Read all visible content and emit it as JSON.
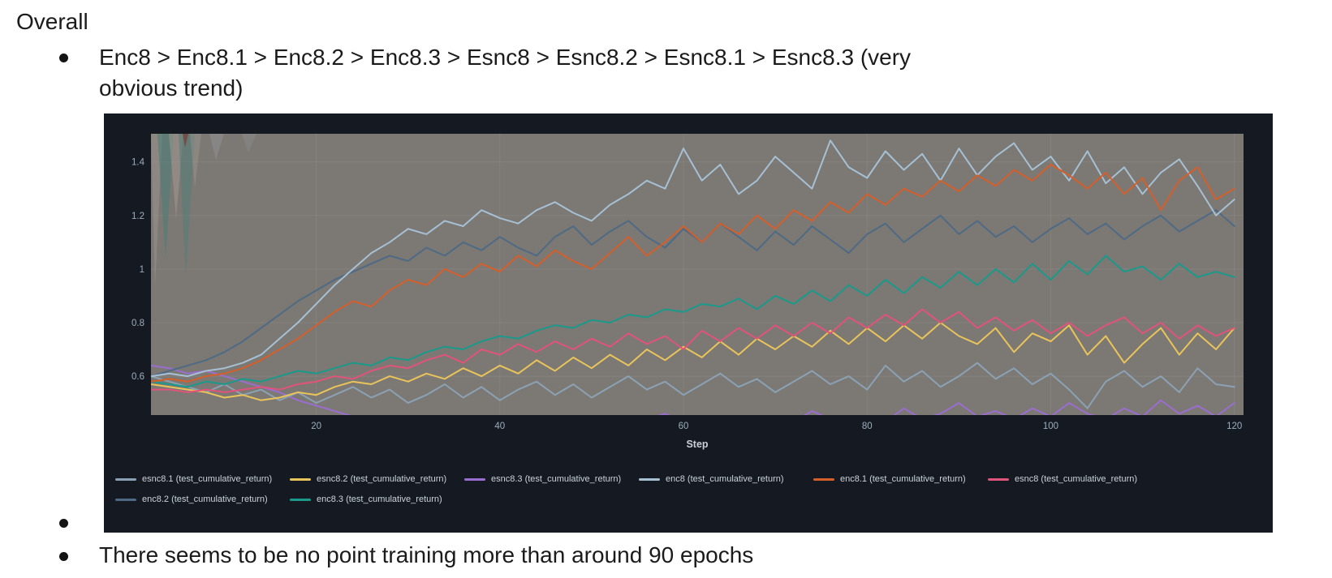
{
  "doc": {
    "title": "Overall",
    "bullet1_line1": "Enc8 > Enc8.1 > Enc8.2 > Enc8.3 > Esnc8 > Esnc8.2 > Esnc8.1 > Esnc8.3 (very",
    "bullet1_line2": "obvious trend)",
    "bullet3_text": "There seems to be no point training more than around 90 epochs"
  },
  "chart_data": {
    "type": "line",
    "xlabel": "Step",
    "x_tick_labels": [
      "20",
      "40",
      "60",
      "80",
      "100",
      "120"
    ],
    "x_tick_values": [
      20,
      40,
      60,
      80,
      100,
      120
    ],
    "y_tick_labels": [
      "0.6",
      "0.8",
      "1",
      "1.2",
      "1.4"
    ],
    "y_tick_values": [
      0.6,
      0.8,
      1.0,
      1.2,
      1.4
    ],
    "x_range": [
      2,
      121
    ],
    "y_range": [
      0.455,
      1.505
    ],
    "legend_position": "bottom",
    "grid": true,
    "colors": {
      "panel_bg": "#151a22",
      "plot_bg": "#7c7874",
      "gridline": "rgba(255,255,255,0.07)",
      "tick_text": "#9cadbb",
      "axis_label_text": "#c9cfd7",
      "legend_text": "#ccd2d9"
    },
    "x": [
      2,
      4,
      6,
      8,
      10,
      12,
      14,
      16,
      18,
      20,
      22,
      24,
      26,
      28,
      30,
      32,
      34,
      36,
      38,
      40,
      42,
      44,
      46,
      48,
      50,
      52,
      54,
      56,
      58,
      60,
      62,
      64,
      66,
      68,
      70,
      72,
      74,
      76,
      78,
      80,
      82,
      84,
      86,
      88,
      90,
      92,
      94,
      96,
      98,
      100,
      102,
      104,
      106,
      108,
      110,
      112,
      114,
      116,
      118,
      120
    ],
    "series": [
      {
        "name": "esnc8.1",
        "label": "esnc8.1 (test_cumulative_return)",
        "color": "#8ba2b4",
        "values": [
          0.6,
          0.58,
          0.56,
          0.54,
          0.57,
          0.53,
          0.55,
          0.51,
          0.54,
          0.5,
          0.53,
          0.56,
          0.52,
          0.55,
          0.5,
          0.53,
          0.57,
          0.52,
          0.56,
          0.51,
          0.55,
          0.58,
          0.53,
          0.57,
          0.52,
          0.56,
          0.6,
          0.55,
          0.58,
          0.53,
          0.57,
          0.61,
          0.56,
          0.59,
          0.54,
          0.58,
          0.62,
          0.57,
          0.6,
          0.55,
          0.64,
          0.58,
          0.62,
          0.56,
          0.6,
          0.65,
          0.59,
          0.63,
          0.57,
          0.61,
          0.55,
          0.48,
          0.58,
          0.62,
          0.56,
          0.6,
          0.54,
          0.63,
          0.57,
          0.56
        ]
      },
      {
        "name": "esnc8.2",
        "label": "esnc8.2 (test_cumulative_return)",
        "color": "#e9c45a",
        "values": [
          0.57,
          0.56,
          0.55,
          0.54,
          0.52,
          0.53,
          0.51,
          0.52,
          0.54,
          0.53,
          0.56,
          0.58,
          0.57,
          0.6,
          0.58,
          0.61,
          0.59,
          0.63,
          0.6,
          0.64,
          0.61,
          0.66,
          0.62,
          0.67,
          0.63,
          0.68,
          0.64,
          0.7,
          0.66,
          0.71,
          0.67,
          0.73,
          0.68,
          0.74,
          0.7,
          0.75,
          0.71,
          0.77,
          0.72,
          0.78,
          0.73,
          0.79,
          0.74,
          0.8,
          0.75,
          0.72,
          0.78,
          0.69,
          0.76,
          0.73,
          0.79,
          0.68,
          0.75,
          0.65,
          0.72,
          0.78,
          0.68,
          0.76,
          0.7,
          0.78
        ]
      },
      {
        "name": "esnc8.3",
        "label": "esnc8.3 (test_cumulative_return)",
        "color": "#9a6ecf",
        "values": [
          0.64,
          0.63,
          0.61,
          0.62,
          0.6,
          0.58,
          0.56,
          0.54,
          0.51,
          0.49,
          0.47,
          0.45,
          0.43,
          0.44,
          0.42,
          0.43,
          0.41,
          0.44,
          0.42,
          0.4,
          0.43,
          0.41,
          0.44,
          0.42,
          0.45,
          0.43,
          0.41,
          0.44,
          0.46,
          0.43,
          0.45,
          0.42,
          0.44,
          0.41,
          0.45,
          0.43,
          0.47,
          0.44,
          0.42,
          0.45,
          0.43,
          0.48,
          0.44,
          0.46,
          0.5,
          0.45,
          0.47,
          0.44,
          0.48,
          0.45,
          0.5,
          0.46,
          0.44,
          0.48,
          0.45,
          0.51,
          0.46,
          0.49,
          0.45,
          0.5
        ]
      },
      {
        "name": "enc8",
        "label": "enc8 (test_cumulative_return)",
        "color": "#a6c0d4",
        "values": [
          0.6,
          0.61,
          0.6,
          0.62,
          0.63,
          0.65,
          0.68,
          0.74,
          0.8,
          0.87,
          0.94,
          1.0,
          1.06,
          1.1,
          1.15,
          1.13,
          1.18,
          1.16,
          1.22,
          1.19,
          1.17,
          1.22,
          1.25,
          1.21,
          1.18,
          1.24,
          1.28,
          1.33,
          1.3,
          1.45,
          1.33,
          1.39,
          1.28,
          1.33,
          1.42,
          1.36,
          1.3,
          1.48,
          1.38,
          1.34,
          1.44,
          1.37,
          1.43,
          1.33,
          1.45,
          1.35,
          1.42,
          1.47,
          1.37,
          1.42,
          1.33,
          1.44,
          1.32,
          1.38,
          1.28,
          1.36,
          1.41,
          1.31,
          1.2,
          1.26
        ]
      },
      {
        "name": "enc8.1",
        "label": "enc8.1 (test_cumulative_return)",
        "color": "#d45f2b",
        "values": [
          0.58,
          0.59,
          0.58,
          0.6,
          0.61,
          0.63,
          0.66,
          0.7,
          0.74,
          0.79,
          0.84,
          0.88,
          0.86,
          0.92,
          0.96,
          0.94,
          1.0,
          0.97,
          1.02,
          0.99,
          1.05,
          1.01,
          1.07,
          1.03,
          1.0,
          1.06,
          1.12,
          1.05,
          1.1,
          1.16,
          1.1,
          1.17,
          1.13,
          1.2,
          1.15,
          1.22,
          1.18,
          1.25,
          1.21,
          1.28,
          1.24,
          1.3,
          1.27,
          1.33,
          1.29,
          1.35,
          1.31,
          1.37,
          1.33,
          1.39,
          1.35,
          1.3,
          1.36,
          1.28,
          1.34,
          1.22,
          1.33,
          1.38,
          1.26,
          1.3
        ]
      },
      {
        "name": "esnc8",
        "label": "esnc8 (test_cumulative_return)",
        "color": "#e0537a",
        "values": [
          0.55,
          0.55,
          0.54,
          0.55,
          0.54,
          0.55,
          0.56,
          0.55,
          0.57,
          0.58,
          0.6,
          0.59,
          0.62,
          0.64,
          0.63,
          0.66,
          0.68,
          0.65,
          0.7,
          0.68,
          0.72,
          0.69,
          0.73,
          0.7,
          0.74,
          0.71,
          0.76,
          0.72,
          0.75,
          0.7,
          0.77,
          0.73,
          0.78,
          0.74,
          0.79,
          0.75,
          0.8,
          0.76,
          0.82,
          0.78,
          0.83,
          0.79,
          0.85,
          0.8,
          0.84,
          0.78,
          0.82,
          0.77,
          0.81,
          0.76,
          0.8,
          0.75,
          0.79,
          0.82,
          0.76,
          0.8,
          0.74,
          0.79,
          0.75,
          0.78
        ]
      },
      {
        "name": "enc8.2",
        "label": "enc8.2 (test_cumulative_return)",
        "color": "#4e6a84",
        "values": [
          0.6,
          0.62,
          0.64,
          0.66,
          0.69,
          0.73,
          0.78,
          0.83,
          0.88,
          0.92,
          0.96,
          0.99,
          1.02,
          1.05,
          1.03,
          1.08,
          1.05,
          1.1,
          1.07,
          1.12,
          1.08,
          1.05,
          1.12,
          1.16,
          1.09,
          1.14,
          1.18,
          1.12,
          1.08,
          1.15,
          1.1,
          1.17,
          1.12,
          1.07,
          1.14,
          1.09,
          1.16,
          1.11,
          1.06,
          1.13,
          1.17,
          1.1,
          1.15,
          1.2,
          1.13,
          1.18,
          1.12,
          1.16,
          1.1,
          1.15,
          1.19,
          1.13,
          1.17,
          1.11,
          1.16,
          1.2,
          1.14,
          1.18,
          1.22,
          1.16
        ]
      },
      {
        "name": "enc8.3",
        "label": "enc8.3 (test_cumulative_return)",
        "color": "#199a8b",
        "values": [
          0.58,
          0.57,
          0.56,
          0.58,
          0.57,
          0.59,
          0.58,
          0.6,
          0.62,
          0.61,
          0.63,
          0.65,
          0.64,
          0.67,
          0.66,
          0.69,
          0.71,
          0.7,
          0.73,
          0.75,
          0.74,
          0.77,
          0.79,
          0.78,
          0.81,
          0.8,
          0.83,
          0.82,
          0.85,
          0.84,
          0.87,
          0.86,
          0.89,
          0.85,
          0.9,
          0.87,
          0.92,
          0.88,
          0.94,
          0.9,
          0.96,
          0.91,
          0.97,
          0.93,
          0.99,
          0.94,
          1.0,
          0.95,
          1.02,
          0.96,
          1.03,
          0.98,
          1.05,
          0.99,
          1.01,
          0.96,
          1.02,
          0.97,
          0.99,
          0.97
        ]
      }
    ]
  }
}
